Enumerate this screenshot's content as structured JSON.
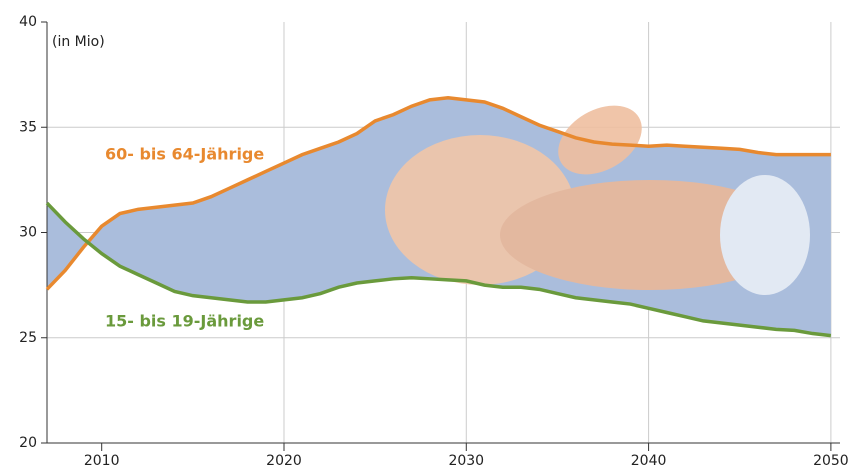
{
  "chart_data": {
    "type": "line",
    "annotation": "(in Mio)",
    "x": [
      2007,
      2008,
      2009,
      2010,
      2011,
      2012,
      2013,
      2014,
      2015,
      2016,
      2017,
      2018,
      2019,
      2020,
      2021,
      2022,
      2023,
      2024,
      2025,
      2026,
      2027,
      2028,
      2029,
      2030,
      2031,
      2032,
      2033,
      2034,
      2035,
      2036,
      2037,
      2038,
      2039,
      2040,
      2041,
      2042,
      2043,
      2044,
      2045,
      2046,
      2047,
      2048,
      2049,
      2050
    ],
    "series": [
      {
        "name": "60- bis 64-Jährige",
        "color": "#e8892f",
        "values": [
          27.3,
          28.2,
          29.3,
          30.3,
          30.9,
          31.1,
          31.2,
          31.3,
          31.4,
          31.7,
          32.1,
          32.5,
          32.9,
          33.3,
          33.7,
          34.0,
          34.3,
          34.7,
          35.3,
          35.6,
          36.0,
          36.3,
          36.4,
          36.3,
          36.2,
          35.9,
          35.5,
          35.1,
          34.8,
          34.5,
          34.3,
          34.2,
          34.15,
          34.1,
          34.15,
          34.1,
          34.05,
          34.0,
          33.95,
          33.8,
          33.7,
          33.7,
          33.7,
          33.7
        ]
      },
      {
        "name": "15- bis 19-Jährige",
        "color": "#6a9a3c",
        "values": [
          31.4,
          30.5,
          29.7,
          29.0,
          28.4,
          28.0,
          27.6,
          27.2,
          27.0,
          26.9,
          26.8,
          26.7,
          26.7,
          26.8,
          26.9,
          27.1,
          27.4,
          27.6,
          27.7,
          27.8,
          27.85,
          27.8,
          27.75,
          27.7,
          27.5,
          27.4,
          27.4,
          27.3,
          27.1,
          26.9,
          26.8,
          26.7,
          26.6,
          26.4,
          26.2,
          26.0,
          25.8,
          25.7,
          25.6,
          25.5,
          25.4,
          25.35,
          25.2,
          25.1
        ]
      }
    ],
    "fill_color": "#aabddc",
    "xlim": [
      2007,
      2050.5
    ],
    "xticks": [
      2010,
      2020,
      2030,
      2040,
      2050
    ],
    "ylim": [
      20,
      40
    ],
    "yticks": [
      20,
      25,
      30,
      35,
      40
    ],
    "grid": true
  }
}
